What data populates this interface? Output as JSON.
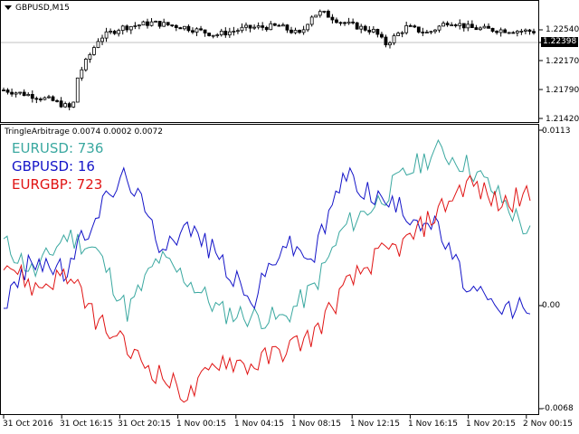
{
  "symbol_label": "GBPUSD,M15",
  "indicator_label": "TringleArbitrage 0.0074 0.0002 0.0072",
  "legend": [
    {
      "name": "EURUSD",
      "value": "736",
      "color": "#3aa8a0"
    },
    {
      "name": "GBPUSD",
      "value": "16",
      "color": "#1414c8"
    },
    {
      "name": "EURGBP",
      "value": "723",
      "color": "#e01414"
    }
  ],
  "price_ticks": [
    "1.22540",
    "1.22398",
    "1.22170",
    "1.21790",
    "1.21420"
  ],
  "current_price": "1.22398",
  "indicator_ticks": [
    "0.0113",
    "0.00",
    "-0.0068"
  ],
  "time_ticks": [
    "31 Oct 2016",
    "31 Oct 16:15",
    "31 Oct 20:15",
    "1 Nov 00:15",
    "1 Nov 04:15",
    "1 Nov 08:15",
    "1 Nov 12:15",
    "1 Nov 16:15",
    "1 Nov 20:15",
    "2 Nov 00:15"
  ],
  "chart_data": [
    {
      "type": "candlestick-ohlc",
      "title": "GBPUSD,M15",
      "x": [
        "31 Oct 2016",
        "31 Oct 16:15",
        "31 Oct 20:15",
        "1 Nov 00:15",
        "1 Nov 04:15",
        "1 Nov 08:15",
        "1 Nov 12:15",
        "1 Nov 16:15",
        "1 Nov 20:15",
        "2 Nov 00:15"
      ],
      "close_approx": [
        1.2172,
        1.2168,
        1.2248,
        1.2246,
        1.224,
        1.2262,
        1.2244,
        1.225,
        1.2242,
        1.224
      ],
      "ylim": [
        1.214,
        1.2268
      ],
      "current": 1.22398
    },
    {
      "type": "line",
      "title": "TringleArbitrage 0.0074 0.0002 0.0072",
      "ylim": [
        -0.0068,
        0.0113
      ],
      "series": [
        {
          "name": "EURUSD",
          "color": "#3aa8a0",
          "values": [
            0.004,
            0.002,
            0.0045,
            0.0035,
            -0.0005,
            0.003,
            0.0015,
            -0.0005,
            -0.0008,
            -0.001,
            0.001,
            0.005,
            0.0065,
            0.0085,
            0.01,
            0.009,
            0.007,
            0.0045
          ]
        },
        {
          "name": "GBPUSD",
          "color": "#1414c8",
          "values": [
            0.0,
            0.003,
            0.002,
            0.006,
            0.0085,
            0.004,
            0.005,
            0.003,
            0.0,
            0.004,
            0.003,
            0.0085,
            0.007,
            0.006,
            0.005,
            0.001,
            -0.0005,
            0.0
          ]
        },
        {
          "name": "EURGBP",
          "color": "#e01414",
          "values": [
            0.003,
            0.001,
            0.002,
            -0.001,
            -0.003,
            -0.0045,
            -0.006,
            -0.0035,
            -0.004,
            -0.003,
            -0.002,
            0.001,
            0.003,
            0.004,
            0.006,
            0.008,
            0.0065,
            0.007
          ]
        }
      ]
    }
  ]
}
